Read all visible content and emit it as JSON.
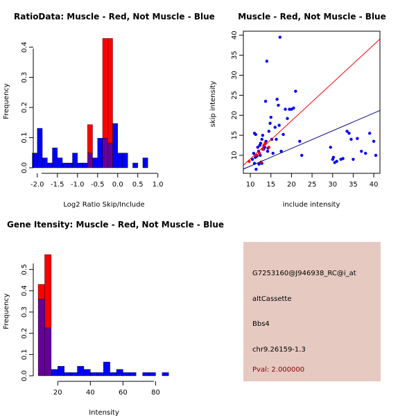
{
  "chart_data": [
    {
      "type": "histogram",
      "title": "RatioData: Muscle - Red, Not Muscle - Blue",
      "xlabel": "Log2 Ratio Skip/Include",
      "ylabel": "Frequency",
      "xlim": [
        -2.1,
        1.35
      ],
      "ylim": [
        0,
        0.43
      ],
      "bin_width": 0.125,
      "x_ticks": [
        -2.0,
        -1.5,
        -1.0,
        -0.5,
        0.0,
        0.5,
        1.0
      ],
      "x_tick_labels": [
        "-2.0",
        "-1.5",
        "-1.0",
        "-0.5",
        "0.0",
        "0.5",
        "1.0"
      ],
      "y_ticks": [
        0.0,
        0.1,
        0.2,
        0.3,
        0.4
      ],
      "y_tick_labels": [
        "0.0",
        "0.1",
        "0.2",
        "0.3",
        "0.4"
      ],
      "series": [
        {
          "name": "Not Muscle",
          "color": "#0000ff",
          "bins": [
            {
              "start": -2.125,
              "value": 0.049
            },
            {
              "start": -2.0,
              "value": 0.131
            },
            {
              "start": -1.875,
              "value": 0.033
            },
            {
              "start": -1.75,
              "value": 0.016
            },
            {
              "start": -1.625,
              "value": 0.066
            },
            {
              "start": -1.5,
              "value": 0.033
            },
            {
              "start": -1.375,
              "value": 0.016
            },
            {
              "start": -1.25,
              "value": 0.016
            },
            {
              "start": -1.125,
              "value": 0.049
            },
            {
              "start": -1.0,
              "value": 0.016
            },
            {
              "start": -0.875,
              "value": 0.016
            },
            {
              "start": -0.75,
              "value": 0.049
            },
            {
              "start": -0.625,
              "value": 0.033
            },
            {
              "start": -0.5,
              "value": 0.098
            },
            {
              "start": -0.375,
              "value": 0.098
            },
            {
              "start": -0.25,
              "value": 0.082
            },
            {
              "start": -0.125,
              "value": 0.147
            },
            {
              "start": 0.0,
              "value": 0.049
            },
            {
              "start": 0.125,
              "value": 0.049
            },
            {
              "start": 0.375,
              "value": 0.016
            },
            {
              "start": 0.625,
              "value": 0.033
            }
          ]
        },
        {
          "name": "Muscle",
          "color": "#ff0000",
          "bins": [
            {
              "start": -0.75,
              "value": 0.143
            },
            {
              "start": -0.375,
              "value": 0.429
            },
            {
              "start": -0.25,
              "value": 0.429
            }
          ]
        }
      ],
      "overlap_color": "#660099"
    },
    {
      "type": "scatter",
      "title": "Muscle - Red, Not Muscle - Blue",
      "xlabel": "include intensity",
      "ylabel": "skip intensity",
      "xlim": [
        8.3,
        41.5
      ],
      "ylim": [
        5.5,
        41
      ],
      "x_ticks": [
        10,
        15,
        20,
        25,
        30,
        35,
        40
      ],
      "x_tick_labels": [
        "10",
        "15",
        "20",
        "25",
        "30",
        "35",
        "40"
      ],
      "y_ticks": [
        10,
        15,
        20,
        25,
        30,
        35,
        40
      ],
      "y_tick_labels": [
        "10",
        "15",
        "20",
        "25",
        "30",
        "35",
        "40"
      ],
      "series": [
        {
          "name": "Not Muscle",
          "color": "#0000ff",
          "x": [
            11,
            11.2,
            11.5,
            11.8,
            12,
            12.3,
            12.5,
            12.8,
            13,
            13.2,
            13.5,
            13.8,
            14,
            14.2,
            14.5,
            14.8,
            15,
            15.5,
            16,
            16.5,
            16.8,
            17,
            17.2,
            17.5,
            18,
            18.5,
            19,
            19.5,
            20,
            20.5,
            21,
            22,
            22.5,
            10.5,
            10.8,
            11,
            11.3,
            11.6,
            12.4,
            12.8,
            13.3,
            13.7,
            14.3,
            15.2,
            16.3,
            29.5,
            30,
            30.2,
            30.5,
            31,
            32,
            32.5,
            33.5,
            34,
            34.5,
            35,
            36,
            37,
            38,
            39,
            40,
            40.5,
            11.4,
            12.1
          ],
          "y": [
            8,
            9.5,
            10,
            12,
            11,
            12.5,
            13,
            14,
            15,
            11.5,
            12,
            13.5,
            33.5,
            11,
            16,
            18,
            19.5,
            10.5,
            17,
            24,
            22.5,
            17.5,
            39.5,
            11,
            15.2,
            21.5,
            19.2,
            21.5,
            21.5,
            21.8,
            26,
            13.5,
            10,
            9,
            10.5,
            15.5,
            15.2,
            9.8,
            10,
            8,
            12.2,
            23.5,
            11.8,
            14,
            14,
            12,
            9,
            9.5,
            8.2,
            8.5,
            9,
            9.2,
            16,
            15.5,
            14,
            9,
            14.2,
            11,
            10.5,
            15.5,
            13.5,
            10,
            6.5,
            7.8
          ]
        },
        {
          "name": "Muscle",
          "color": "#ff0000",
          "x": [
            9.7,
            11.3,
            12.2,
            13,
            13.3,
            13.6,
            14.5,
            12.6
          ],
          "y": [
            8.5,
            10,
            10.5,
            11.5,
            12.5,
            13,
            12,
            8.3
          ]
        }
      ],
      "fit_lines": [
        {
          "name": "Muscle fit",
          "color": "#ff0000",
          "slope": 0.949,
          "intercept": -0.36
        },
        {
          "name": "Not Muscle fit",
          "color": "#00008b",
          "slope": 0.441,
          "intercept": 2.9
        }
      ]
    },
    {
      "type": "histogram",
      "title": "Gene Itensity: Muscle - Red, Not Muscle - Blue",
      "xlabel": "Intensity",
      "ylabel": "Frequency",
      "xlim": [
        5,
        90
      ],
      "ylim": [
        0,
        0.6
      ],
      "bin_width": 4,
      "x_ticks": [
        20,
        40,
        60,
        80
      ],
      "x_tick_labels": [
        "20",
        "40",
        "60",
        "80"
      ],
      "y_ticks": [
        0.0,
        0.1,
        0.2,
        0.3,
        0.4,
        0.5
      ],
      "y_tick_labels": [
        "0.0",
        "0.1",
        "0.2",
        "0.3",
        "0.4",
        "0.5"
      ],
      "series": [
        {
          "name": "Not Muscle",
          "color": "#0000ff",
          "bins": [
            {
              "start": 8,
              "value": 0.36
            },
            {
              "start": 12,
              "value": 0.225
            },
            {
              "start": 16,
              "value": 0.03
            },
            {
              "start": 20,
              "value": 0.045
            },
            {
              "start": 24,
              "value": 0.015
            },
            {
              "start": 28,
              "value": 0.015
            },
            {
              "start": 32,
              "value": 0.045
            },
            {
              "start": 36,
              "value": 0.03
            },
            {
              "start": 40,
              "value": 0.015
            },
            {
              "start": 44,
              "value": 0.015
            },
            {
              "start": 48,
              "value": 0.065
            },
            {
              "start": 52,
              "value": 0.015
            },
            {
              "start": 56,
              "value": 0.03
            },
            {
              "start": 60,
              "value": 0.015
            },
            {
              "start": 64,
              "value": 0.015
            },
            {
              "start": 72,
              "value": 0.015
            },
            {
              "start": 76,
              "value": 0.015
            },
            {
              "start": 84,
              "value": 0.015
            }
          ]
        },
        {
          "name": "Muscle",
          "color": "#ff0000",
          "bins": [
            {
              "start": 8,
              "value": 0.43
            },
            {
              "start": 12,
              "value": 0.57
            }
          ]
        }
      ],
      "overlap_color": "#660099"
    }
  ],
  "info_panel": {
    "probe_id": "G7253160@J946938_RC@i_at",
    "event_type": "altCassette",
    "gene": "Bbs4",
    "location": "chr9.26159-1.3",
    "pval": "Pval: 2.000000",
    "background_color": "#e6c9c1",
    "pval_color": "#8b0000"
  }
}
